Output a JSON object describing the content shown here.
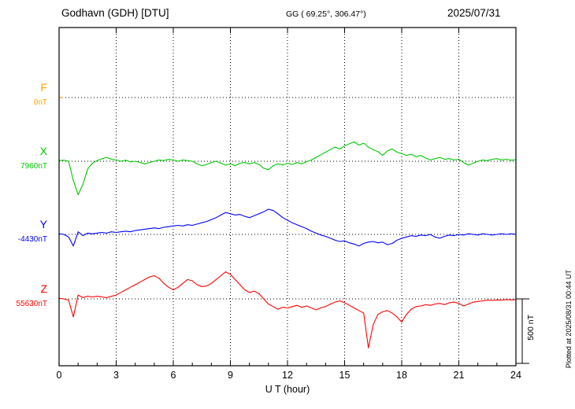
{
  "header": {
    "station": "Godhavn (GDH)  [DTU]",
    "coords": "GG ( 69.25°, 306.47°)",
    "date": "2025/07/31"
  },
  "footer": {
    "xlabel": "U T (hour)"
  },
  "side": {
    "scale_label": "500 nT",
    "plotted_at": "Plotted at 2025/08/31 00:44 UT"
  },
  "chart_data": {
    "type": "line",
    "title": "Magnetogram Godhavn (GDH) [DTU] 2025/07/31",
    "xlabel": "U T (hour)",
    "xlim": [
      0,
      24
    ],
    "xticks": [
      0,
      3,
      6,
      9,
      12,
      15,
      18,
      21,
      24
    ],
    "grid": "dotted vertical at 3h intervals, dotted horizontal at each trace baseline",
    "scale_bar_nT": 500,
    "series": [
      {
        "name": "F",
        "color": "#ffa500",
        "baseline_label": "0nT",
        "baseline_nT": 0,
        "x_start": 0,
        "x_step": 0.1,
        "dev_nT": [
          0,
          0,
          0
        ]
      },
      {
        "name": "X",
        "color": "#00c800",
        "baseline_label": "7960nT",
        "baseline_nT": 7960,
        "x_start": 0,
        "x_step": 0.25,
        "dev_nT": [
          5,
          8,
          0,
          -150,
          -260,
          -180,
          -60,
          -15,
          5,
          20,
          30,
          15,
          10,
          0,
          8,
          -5,
          0,
          -10,
          -20,
          -10,
          0,
          10,
          5,
          15,
          10,
          0,
          10,
          5,
          0,
          -20,
          -35,
          -25,
          -10,
          0,
          -15,
          -30,
          -20,
          -35,
          -15,
          -10,
          -20,
          -10,
          -25,
          -55,
          -65,
          -35,
          -20,
          -30,
          -15,
          -25,
          -10,
          -20,
          -5,
          10,
          30,
          50,
          70,
          90,
          110,
          95,
          120,
          135,
          150,
          125,
          140,
          110,
          90,
          75,
          45,
          80,
          95,
          70,
          60,
          45,
          55,
          35,
          45,
          25,
          10,
          20,
          30,
          15,
          20,
          10,
          15,
          -10,
          -30,
          -15,
          0,
          10,
          5,
          15,
          20,
          10,
          15,
          8,
          12
        ]
      },
      {
        "name": "Y",
        "color": "#0000ff",
        "baseline_label": "-4430nT",
        "baseline_nT": -4430,
        "x_start": 0,
        "x_step": 0.25,
        "dev_nT": [
          5,
          0,
          -20,
          -90,
          20,
          -10,
          10,
          5,
          10,
          15,
          10,
          20,
          15,
          20,
          25,
          20,
          30,
          35,
          40,
          45,
          50,
          45,
          55,
          60,
          65,
          70,
          65,
          75,
          70,
          80,
          90,
          100,
          115,
          130,
          150,
          170,
          160,
          150,
          155,
          140,
          130,
          145,
          160,
          175,
          195,
          185,
          160,
          130,
          110,
          90,
          75,
          60,
          45,
          25,
          10,
          -5,
          -15,
          -30,
          -45,
          -55,
          -50,
          -65,
          -75,
          -90,
          -70,
          -60,
          -55,
          -65,
          -60,
          -80,
          -70,
          -45,
          -30,
          -20,
          -10,
          -15,
          -5,
          -10,
          0,
          -20,
          -30,
          -15,
          -5,
          -10,
          0,
          -5,
          5,
          0,
          -5,
          5,
          0,
          -5,
          0,
          5,
          0,
          5,
          0
        ]
      },
      {
        "name": "Z",
        "color": "#ff0000",
        "baseline_label": "55630nT",
        "baseline_nT": 55630,
        "x_start": 0,
        "x_step": 0.25,
        "dev_nT": [
          5,
          0,
          -10,
          -140,
          30,
          10,
          20,
          15,
          20,
          15,
          10,
          20,
          30,
          50,
          70,
          90,
          110,
          130,
          150,
          170,
          180,
          160,
          120,
          90,
          70,
          90,
          120,
          150,
          140,
          110,
          95,
          100,
          120,
          150,
          180,
          210,
          190,
          150,
          110,
          70,
          50,
          60,
          40,
          0,
          -40,
          -60,
          -80,
          -65,
          -70,
          -60,
          -50,
          -65,
          -55,
          -70,
          -85,
          -70,
          -60,
          -40,
          -25,
          -15,
          -30,
          -50,
          -70,
          -90,
          -110,
          -380,
          -200,
          -120,
          -100,
          -90,
          -110,
          -140,
          -180,
          -120,
          -80,
          -60,
          -55,
          -45,
          -50,
          -40,
          -35,
          -45,
          -30,
          -25,
          -35,
          -55,
          -40,
          -25,
          -20,
          -15,
          -10,
          -12,
          -8,
          -10,
          -5,
          -8,
          -5
        ]
      }
    ]
  }
}
